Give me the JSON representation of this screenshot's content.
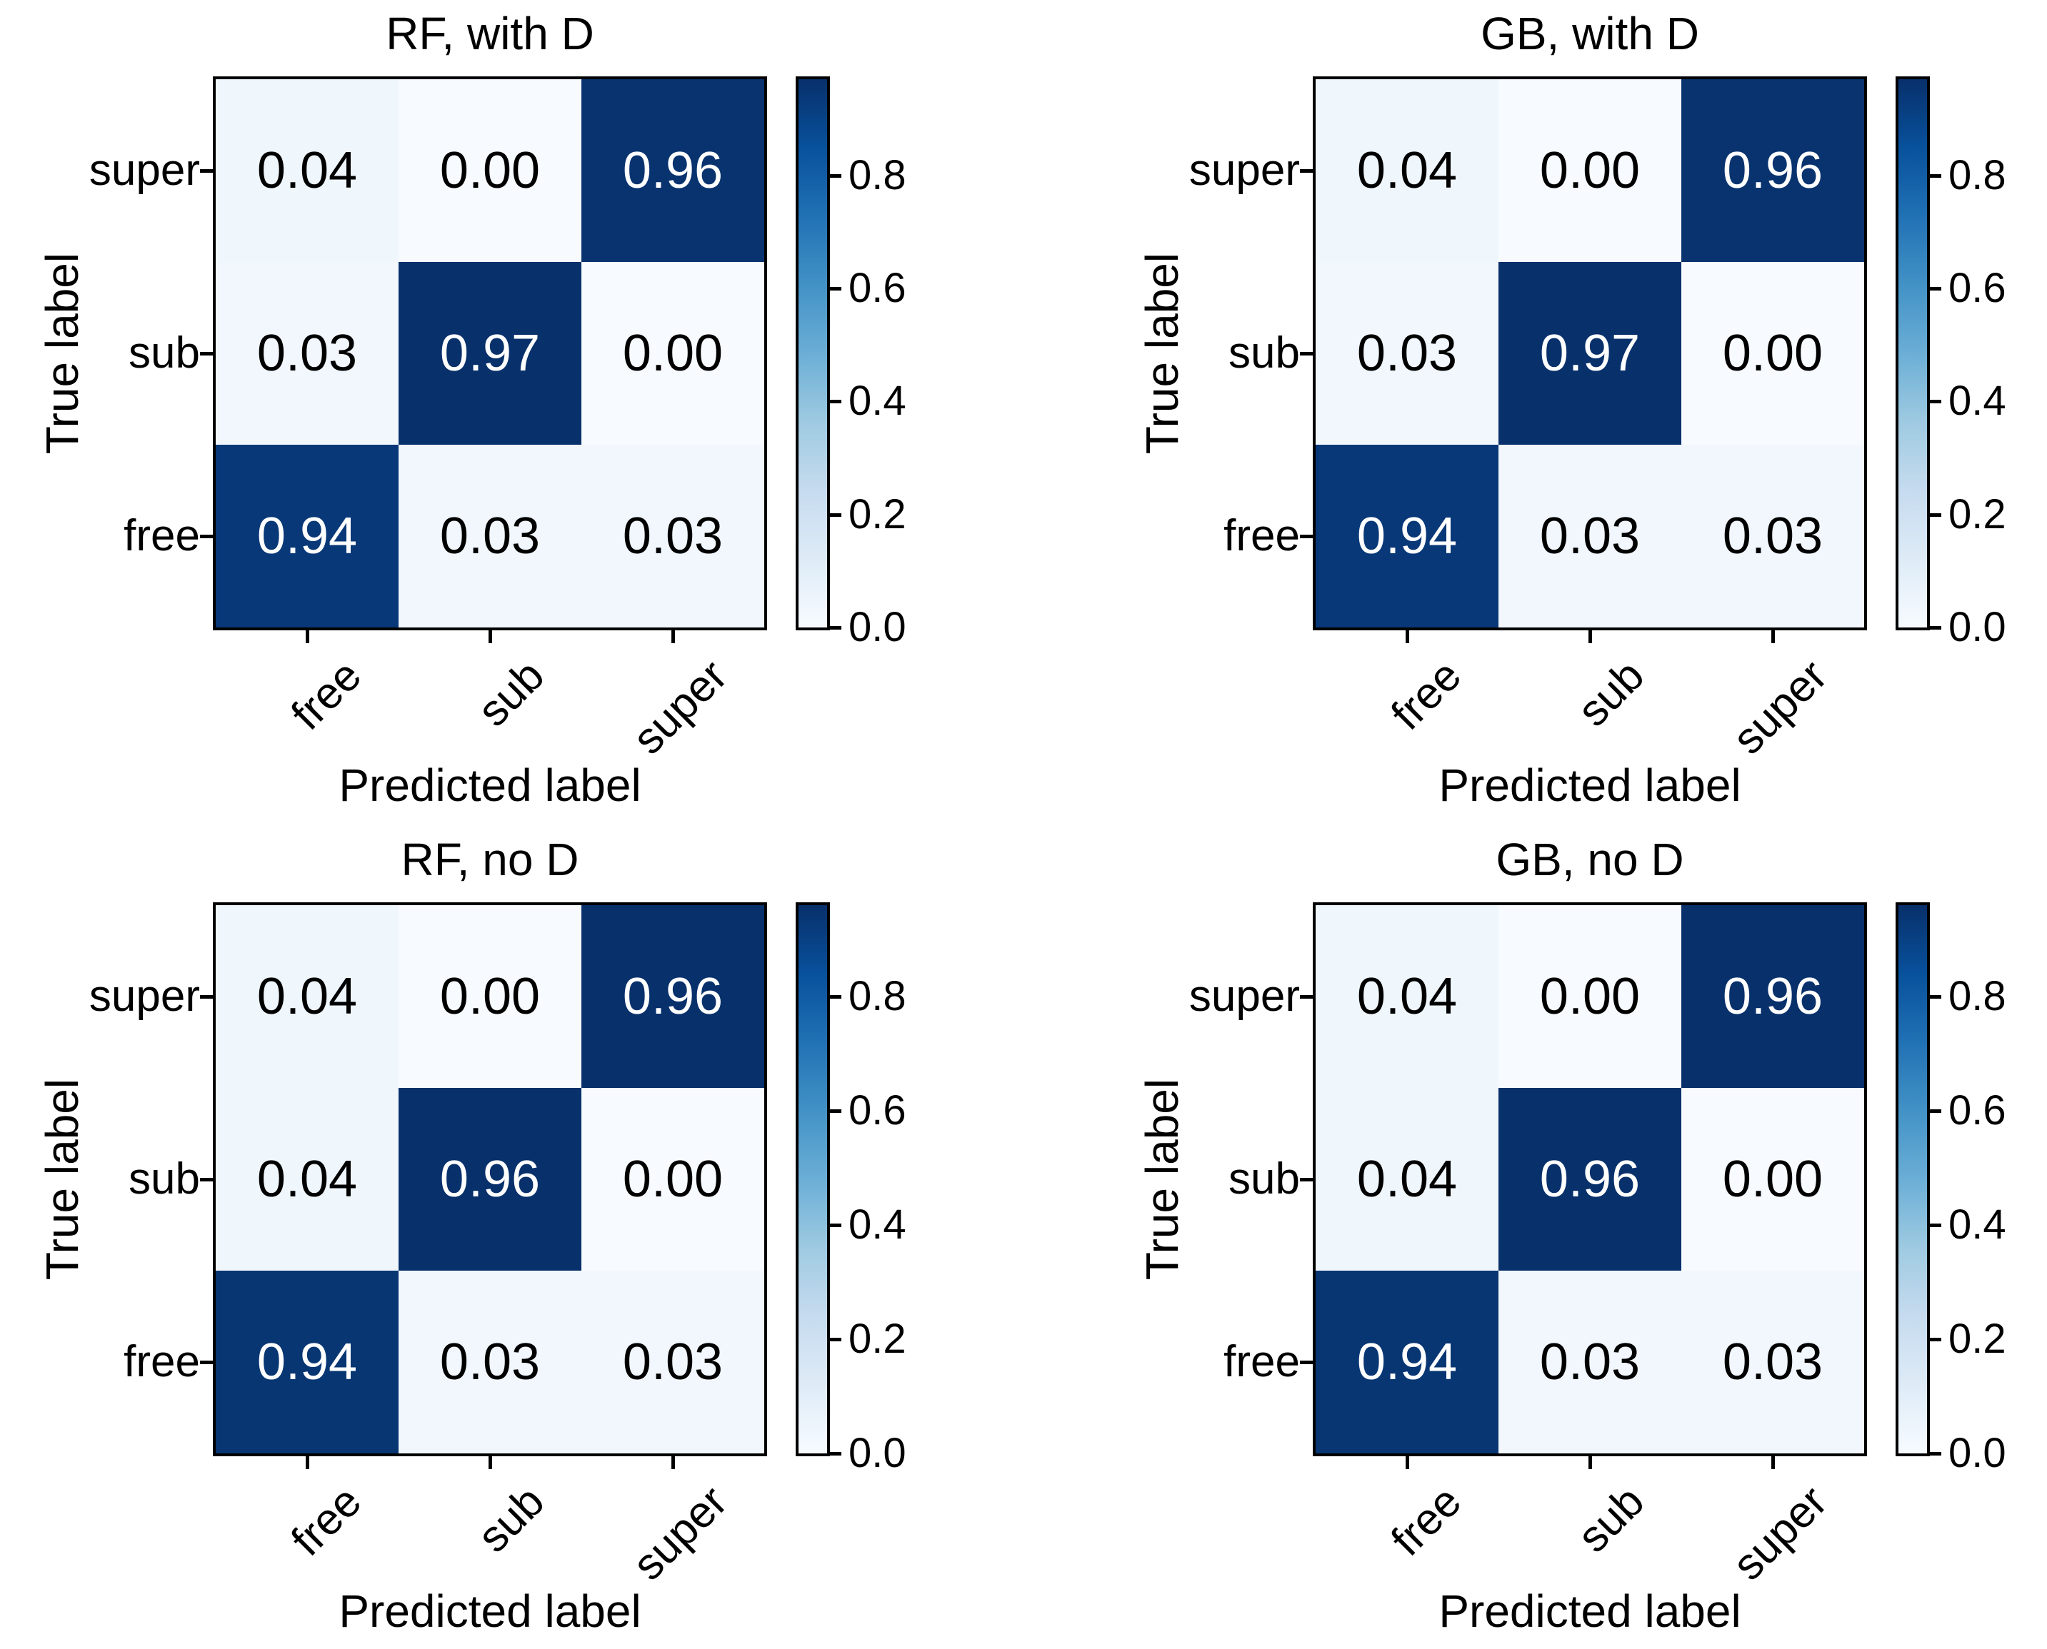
{
  "figure": {
    "background": "#ffffff",
    "text_color": "#000000",
    "colormap": "Blues",
    "colormap_stops": [
      "#f7fbff",
      "#deebf7",
      "#c6dbef",
      "#9ecae1",
      "#6baed6",
      "#4292c6",
      "#2171b5",
      "#08519c",
      "#08306b"
    ],
    "cell_text_light": "#ffffff",
    "cell_text_dark": "#000000"
  },
  "chart_data": [
    {
      "type": "heatmap",
      "title": "RF, with D",
      "xlabel": "Predicted label",
      "ylabel": "True label",
      "x_categories": [
        "free",
        "sub",
        "super"
      ],
      "y_categories": [
        "super",
        "sub",
        "free"
      ],
      "values": [
        [
          0.04,
          0.0,
          0.96
        ],
        [
          0.03,
          0.97,
          0.0
        ],
        [
          0.94,
          0.03,
          0.03
        ]
      ],
      "cell_labels": [
        [
          "0.04",
          "0.00",
          "0.96"
        ],
        [
          "0.03",
          "0.97",
          "0.00"
        ],
        [
          "0.94",
          "0.03",
          "0.03"
        ]
      ],
      "vmin": 0.0,
      "vmax": 0.97,
      "colorbar_ticks": [
        0.0,
        0.2,
        0.4,
        0.6,
        0.8
      ],
      "colorbar_tick_labels": [
        "0.0",
        "0.2",
        "0.4",
        "0.6",
        "0.8"
      ],
      "colorbar_position": "right",
      "grid": false
    },
    {
      "type": "heatmap",
      "title": "GB, with D",
      "xlabel": "Predicted label",
      "ylabel": "True label",
      "x_categories": [
        "free",
        "sub",
        "super"
      ],
      "y_categories": [
        "super",
        "sub",
        "free"
      ],
      "values": [
        [
          0.04,
          0.0,
          0.96
        ],
        [
          0.03,
          0.97,
          0.0
        ],
        [
          0.94,
          0.03,
          0.03
        ]
      ],
      "cell_labels": [
        [
          "0.04",
          "0.00",
          "0.96"
        ],
        [
          "0.03",
          "0.97",
          "0.00"
        ],
        [
          "0.94",
          "0.03",
          "0.03"
        ]
      ],
      "vmin": 0.0,
      "vmax": 0.97,
      "colorbar_ticks": [
        0.0,
        0.2,
        0.4,
        0.6,
        0.8
      ],
      "colorbar_tick_labels": [
        "0.0",
        "0.2",
        "0.4",
        "0.6",
        "0.8"
      ],
      "colorbar_position": "right",
      "grid": false
    },
    {
      "type": "heatmap",
      "title": "RF, no D",
      "xlabel": "Predicted label",
      "ylabel": "True label",
      "x_categories": [
        "free",
        "sub",
        "super"
      ],
      "y_categories": [
        "super",
        "sub",
        "free"
      ],
      "values": [
        [
          0.04,
          0.0,
          0.96
        ],
        [
          0.04,
          0.96,
          0.0
        ],
        [
          0.94,
          0.03,
          0.03
        ]
      ],
      "cell_labels": [
        [
          "0.04",
          "0.00",
          "0.96"
        ],
        [
          "0.04",
          "0.96",
          "0.00"
        ],
        [
          "0.94",
          "0.03",
          "0.03"
        ]
      ],
      "vmin": 0.0,
      "vmax": 0.96,
      "colorbar_ticks": [
        0.0,
        0.2,
        0.4,
        0.6,
        0.8
      ],
      "colorbar_tick_labels": [
        "0.0",
        "0.2",
        "0.4",
        "0.6",
        "0.8"
      ],
      "colorbar_position": "right",
      "grid": false
    },
    {
      "type": "heatmap",
      "title": "GB, no D",
      "xlabel": "Predicted label",
      "ylabel": "True label",
      "x_categories": [
        "free",
        "sub",
        "super"
      ],
      "y_categories": [
        "super",
        "sub",
        "free"
      ],
      "values": [
        [
          0.04,
          0.0,
          0.96
        ],
        [
          0.04,
          0.96,
          0.0
        ],
        [
          0.94,
          0.03,
          0.03
        ]
      ],
      "cell_labels": [
        [
          "0.04",
          "0.00",
          "0.96"
        ],
        [
          "0.04",
          "0.96",
          "0.00"
        ],
        [
          "0.94",
          "0.03",
          "0.03"
        ]
      ],
      "vmin": 0.0,
      "vmax": 0.96,
      "colorbar_ticks": [
        0.0,
        0.2,
        0.4,
        0.6,
        0.8
      ],
      "colorbar_tick_labels": [
        "0.0",
        "0.2",
        "0.4",
        "0.6",
        "0.8"
      ],
      "colorbar_position": "right",
      "grid": false
    }
  ]
}
